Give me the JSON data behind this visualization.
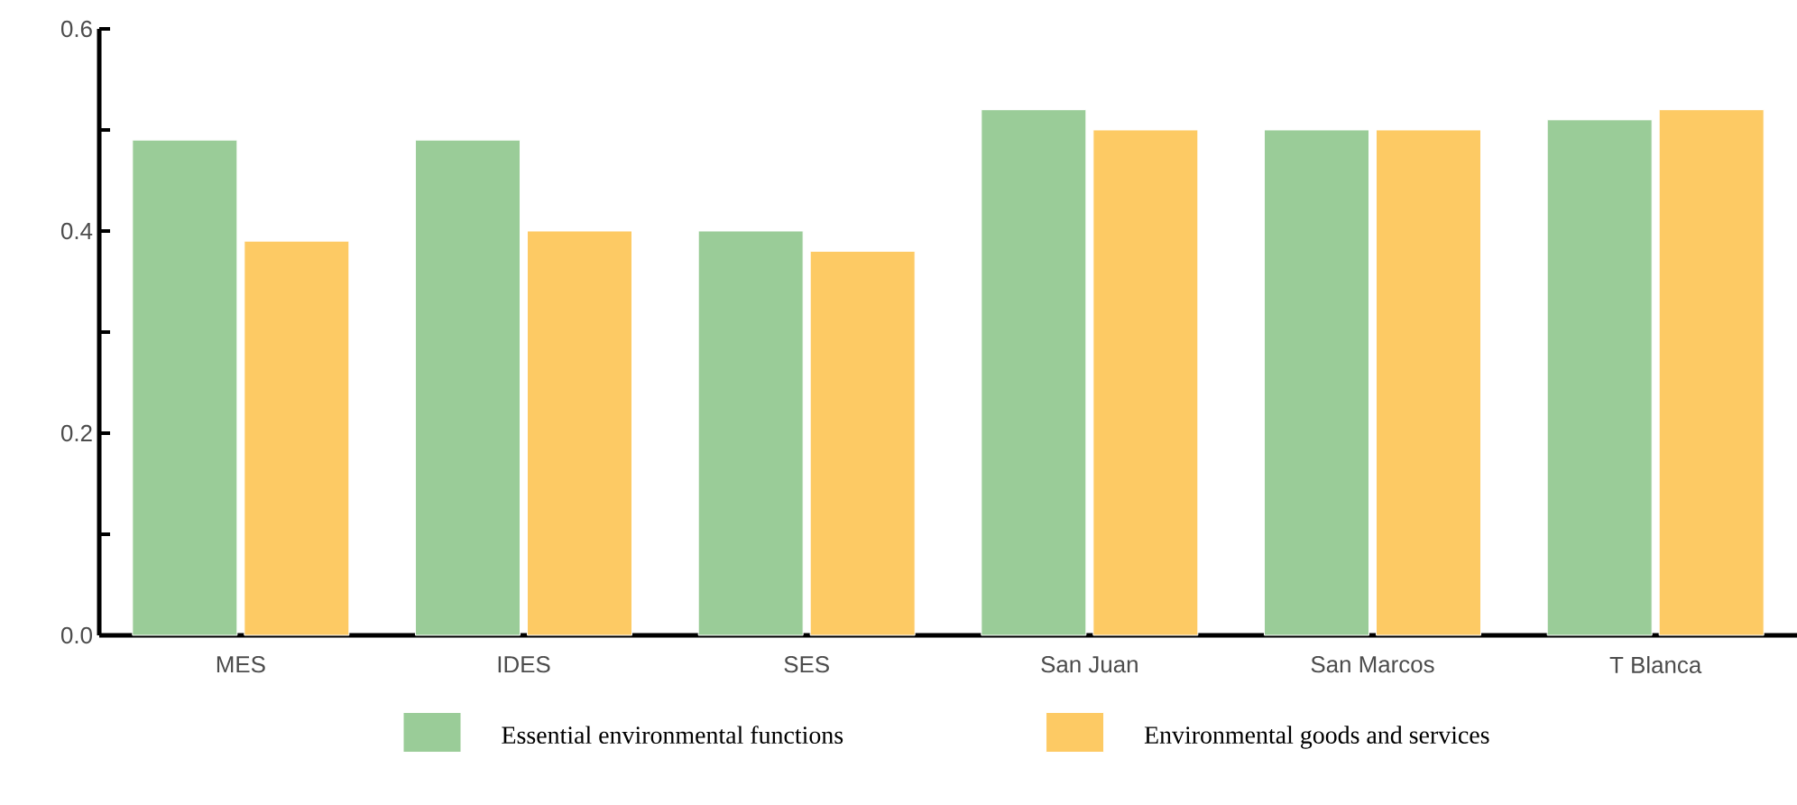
{
  "chart_data": {
    "type": "bar",
    "categories": [
      "MES",
      "IDES",
      "SES",
      "San Juan",
      "San Marcos",
      "T Blanca"
    ],
    "series": [
      {
        "name": "Essential environmental functions",
        "color": "#9acc98",
        "values": [
          0.49,
          0.49,
          0.4,
          0.52,
          0.5,
          0.51
        ]
      },
      {
        "name": "Environmental goods and services",
        "color": "#fdca64",
        "values": [
          0.39,
          0.4,
          0.38,
          0.5,
          0.5,
          0.52
        ]
      }
    ],
    "ylim": [
      0,
      0.6
    ],
    "yticks": [
      {
        "value": 0,
        "label": "0.0"
      },
      {
        "value": 0.1,
        "label": null
      },
      {
        "value": 0.2,
        "label": "0.2"
      },
      {
        "value": 0.3,
        "label": null
      },
      {
        "value": 0.4,
        "label": "0.4"
      },
      {
        "value": 0.5,
        "label": null
      },
      {
        "value": 0.6,
        "label": "0.6"
      }
    ],
    "grid": false,
    "legend": "bottom"
  }
}
